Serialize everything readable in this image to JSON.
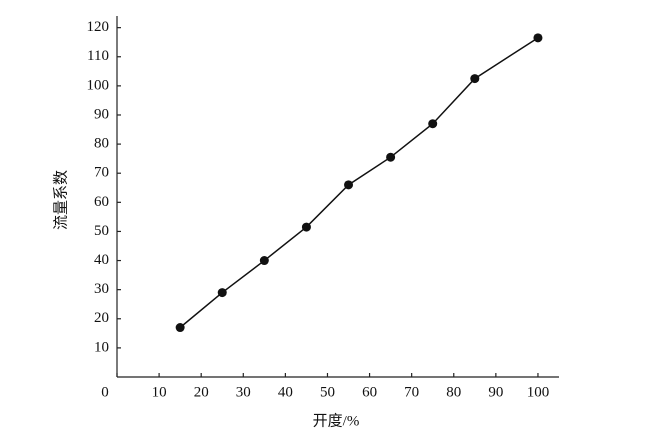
{
  "chart_data": {
    "type": "line",
    "x_label": "开度/%",
    "y_label": "流量系数",
    "x": [
      15,
      25,
      35,
      45,
      55,
      65,
      75,
      85,
      100
    ],
    "series": [
      {
        "name": "流量系数",
        "color": "#111111",
        "values": [
          17,
          29,
          40,
          51.5,
          66,
          75.5,
          87,
          102.5,
          116.5
        ]
      }
    ],
    "xlim": [
      0,
      105
    ],
    "xticks": [
      0,
      10,
      20,
      30,
      40,
      50,
      60,
      70,
      80,
      90,
      100
    ],
    "ylim": [
      0,
      124
    ],
    "yticks": [
      10,
      20,
      30,
      40,
      50,
      60,
      70,
      80,
      90,
      100,
      110,
      120
    ],
    "legend": false,
    "grid": false
  }
}
